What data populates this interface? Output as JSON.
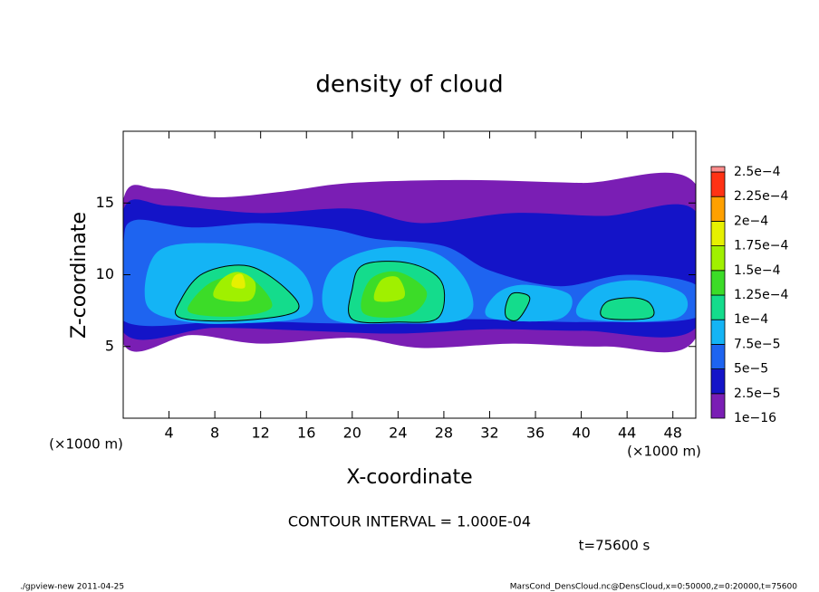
{
  "chart_data": {
    "type": "contour",
    "title": "density of cloud",
    "x_label": "X-coordinate",
    "y_label": "Z-coordinate",
    "x_unit": "(×1000 m)",
    "xlim": [
      0,
      50
    ],
    "ylim": [
      0,
      20
    ],
    "xticks": [
      4,
      8,
      12,
      16,
      20,
      24,
      28,
      32,
      36,
      40,
      44,
      48
    ],
    "yticks": [
      5,
      10,
      15
    ],
    "colorbar": {
      "levels": [
        {
          "value": 1e-16,
          "label": "1e−16"
        },
        {
          "value": 2.5e-05,
          "label": "2.5e−5"
        },
        {
          "value": 5e-05,
          "label": "5e−5"
        },
        {
          "value": 7.5e-05,
          "label": "7.5e−5"
        },
        {
          "value": 0.0001,
          "label": "1e−4"
        },
        {
          "value": 0.000125,
          "label": "1.25e−4"
        },
        {
          "value": 0.00015,
          "label": "1.5e−4"
        },
        {
          "value": 0.000175,
          "label": "1.75e−4"
        },
        {
          "value": 0.0002,
          "label": "2e−4"
        },
        {
          "value": 0.000225,
          "label": "2.25e−4"
        },
        {
          "value": 0.00025,
          "label": "2.5e−4"
        }
      ],
      "colors": [
        "#7a1eb4",
        "#1414c8",
        "#1e64f0",
        "#14b4f5",
        "#14dc8c",
        "#3cdc28",
        "#a0f000",
        "#e6f000",
        "#ffa000",
        "#ff3214",
        "#ff8c8c"
      ]
    },
    "contour_interval": "CONTOUR INTERVAL = 1.000E-04",
    "time": "t=75600 s",
    "footer_left": "./gpview-new  2011-04-25",
    "footer_right": "MarsCond_DensCloud.nc@DensCloud,x=0:50000,z=0:20000,t=75600"
  }
}
